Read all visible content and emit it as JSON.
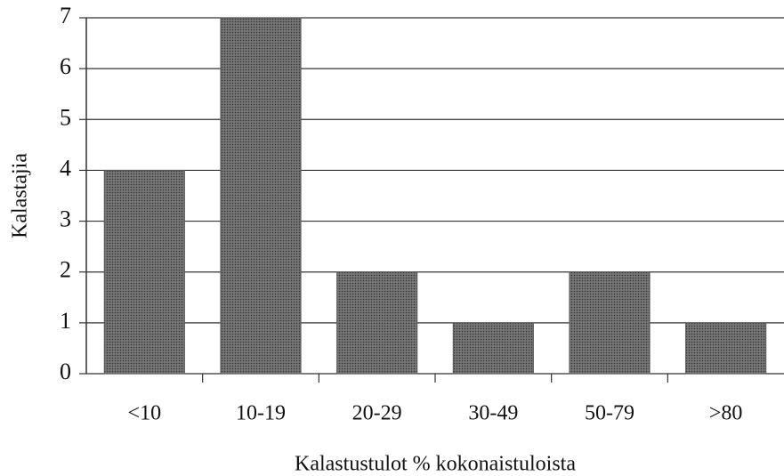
{
  "chart_data": {
    "type": "bar",
    "categories": [
      "<10",
      "10-19",
      "20-29",
      "30-49",
      "50-79",
      ">80"
    ],
    "values": [
      4,
      7,
      2,
      1,
      2,
      1
    ],
    "color": "#5a5a5a",
    "xlabel": "Kalastustulot % kokonaistuloista",
    "ylabel": "Kalastajia",
    "ylim": [
      0,
      7
    ],
    "yticks": [
      0,
      1,
      2,
      3,
      4,
      5,
      6,
      7
    ],
    "grid": true
  }
}
